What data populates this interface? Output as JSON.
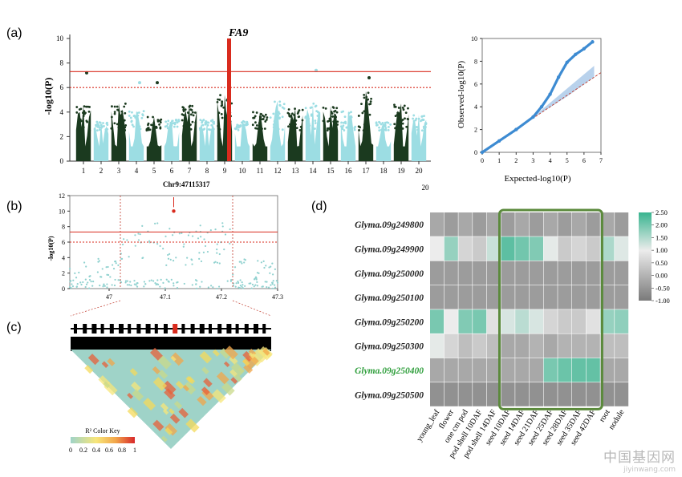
{
  "panels": {
    "a": "(a)",
    "b": "(b)",
    "c": "(c)",
    "d": "(d)"
  },
  "colors": {
    "chrom_dark": "#1b3a1f",
    "chrom_light": "#9cdde3",
    "peak_red": "#d92b1e",
    "threshold_red": "#d92b1e",
    "qq_blue": "#3d8bd2",
    "heat_high": "#39b48f",
    "heat_mid": "#ececec",
    "heat_low": "#7a7a7a",
    "box_green": "#5b8a3c"
  },
  "chart_data": [
    {
      "type": "scatter",
      "subtype": "manhattan",
      "title": "",
      "gene_label": "FA9",
      "ylabel": "-log10(P)",
      "xlabel": "Chr9:47115317",
      "ylim": [
        0,
        10
      ],
      "yticks": [
        0,
        2,
        4,
        6,
        8,
        10
      ],
      "chromosomes": [
        "1",
        "2",
        "3",
        "4",
        "5",
        "6",
        "7",
        "8",
        "9",
        "10",
        "11",
        "12",
        "13",
        "14",
        "15",
        "16",
        "17",
        "18",
        "19",
        "20"
      ],
      "extra_tick_label": "20",
      "chrom_max": [
        4.6,
        3.2,
        4.7,
        4.1,
        3.6,
        3.4,
        4.6,
        3.4,
        5.4,
        3.3,
        4.0,
        4.9,
        4.3,
        4.7,
        4.5,
        4.1,
        5.7,
        3.2,
        4.7,
        3.8
      ],
      "outliers": [
        {
          "chr": 1,
          "y": 7.2
        },
        {
          "chr": 5,
          "y": 6.4
        },
        {
          "chr": 14,
          "y": 7.4
        },
        {
          "chr": 17,
          "y": 6.8
        },
        {
          "chr": 4,
          "y": 6.4
        }
      ],
      "peak": {
        "chr": 9,
        "y": 10
      },
      "thresholds": [
        {
          "y": 7.3,
          "style": "solid"
        },
        {
          "y": 6.0,
          "style": "dashed"
        }
      ]
    },
    {
      "type": "scatter",
      "subtype": "qq",
      "xlabel": "Expected-log10(P)",
      "ylabel": "Observed-log10(P)",
      "xlim": [
        0,
        7
      ],
      "ylim": [
        0,
        10
      ],
      "xticks": [
        0,
        1,
        2,
        3,
        4,
        5,
        6,
        7
      ],
      "yticks": [
        0,
        2,
        4,
        6,
        8,
        10
      ],
      "curve": [
        [
          0,
          0
        ],
        [
          1,
          1
        ],
        [
          2,
          2
        ],
        [
          3,
          3.1
        ],
        [
          3.5,
          4.0
        ],
        [
          4,
          5.1
        ],
        [
          4.5,
          6.6
        ],
        [
          5,
          7.9
        ],
        [
          5.5,
          8.6
        ],
        [
          6,
          9.1
        ],
        [
          6.5,
          9.7
        ]
      ],
      "ci_upper": [
        [
          3,
          3.1
        ],
        [
          5,
          5.6
        ],
        [
          6.6,
          7.6
        ]
      ],
      "ci_lower": [
        [
          3,
          3.0
        ],
        [
          5,
          4.9
        ],
        [
          6.6,
          6.6
        ]
      ]
    },
    {
      "type": "scatter",
      "subtype": "regional",
      "ylabel": "-log10(P)",
      "xlim": [
        46.93,
        47.3
      ],
      "ylim": [
        0,
        12
      ],
      "xticks": [
        47.0,
        47.1,
        47.2,
        47.3
      ],
      "yticks": [
        0,
        2,
        4,
        6,
        8,
        10,
        12
      ],
      "region": [
        47.02,
        47.22
      ],
      "lead_snp": {
        "x": 47.115,
        "y": 10.0
      },
      "thresholds": [
        {
          "y": 7.3,
          "style": "solid"
        },
        {
          "y": 6.0,
          "style": "dashed"
        }
      ]
    },
    {
      "type": "heatmap",
      "subtype": "ld",
      "color_key_title": "R² Color Key",
      "color_key_ticks": [
        "0",
        "0.2",
        "0.4",
        "0.6",
        "0.8",
        "1"
      ]
    },
    {
      "type": "heatmap",
      "rows": [
        "Glyma.09g249800",
        "Glyma.09g249900",
        "Glyma.09g250000",
        "Glyma.09g250100",
        "Glyma.09g250200",
        "Glyma.09g250300",
        "Glyma.09g250400",
        "Glyma.09g250500"
      ],
      "highlight_row": "Glyma.09g250400",
      "columns": [
        "young_leaf",
        "flower",
        "one cm pod",
        "pod shell 10DAF",
        "pod shell 14DAF",
        "seed 10DAF",
        "seed 14DAF",
        "seed 21DAF",
        "seed 25DAF",
        "seed 28DAF",
        "seed 35DAF",
        "seed 42DAF",
        "root",
        "nodule"
      ],
      "values": [
        [
          -0.6,
          -0.7,
          -0.6,
          -0.7,
          -0.6,
          -0.7,
          -0.6,
          -0.7,
          -0.6,
          -0.7,
          -0.6,
          -0.7,
          -0.6,
          -0.7
        ],
        [
          0.0,
          1.2,
          -0.2,
          -0.3,
          0.5,
          2.0,
          1.7,
          1.5,
          0.1,
          -0.3,
          -0.2,
          -0.3,
          0.9,
          0.2
        ],
        [
          -0.7,
          -0.7,
          -0.7,
          -0.7,
          -0.7,
          -0.7,
          -0.7,
          -0.7,
          -0.7,
          -0.7,
          -0.7,
          -0.7,
          -0.7,
          -0.7
        ],
        [
          -0.7,
          -0.7,
          -0.7,
          -0.7,
          -0.7,
          -0.7,
          -0.7,
          -0.7,
          -0.7,
          -0.7,
          -0.7,
          -0.7,
          -0.7,
          -0.7
        ],
        [
          1.6,
          0.0,
          1.5,
          1.6,
          -0.1,
          0.3,
          0.7,
          0.3,
          -0.2,
          -0.3,
          -0.3,
          -0.1,
          1.2,
          1.3
        ],
        [
          0.1,
          -0.2,
          -0.4,
          -0.3,
          -0.4,
          -0.6,
          -0.6,
          -0.5,
          -0.6,
          -0.5,
          -0.5,
          -0.5,
          -0.4,
          -0.4
        ],
        [
          -0.6,
          -0.6,
          -0.6,
          -0.6,
          -0.6,
          -0.6,
          -0.6,
          -0.6,
          1.6,
          1.8,
          1.9,
          1.9,
          -0.6,
          -0.6
        ],
        [
          -0.8,
          -0.8,
          -0.8,
          -0.8,
          -0.8,
          -0.8,
          -0.8,
          -0.8,
          -0.8,
          -0.8,
          -0.8,
          -0.8,
          -0.8,
          -0.8
        ]
      ],
      "highlight_columns": [
        "seed 10DAF",
        "seed 42DAF"
      ],
      "scale": {
        "min": -1.0,
        "max": 2.5,
        "ticks": [
          "2.50",
          "2.00",
          "1.50",
          "1.00",
          "0.50",
          "0.00",
          "-0.50",
          "-1.00"
        ]
      }
    }
  ],
  "watermark": {
    "main": "中国基因网",
    "sub": "jiyinwang.com"
  }
}
